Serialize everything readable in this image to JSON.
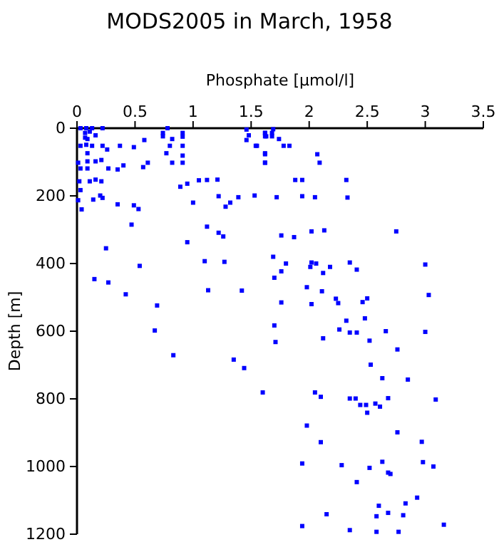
{
  "chart_data": {
    "type": "scatter",
    "title": "MODS2005 in March, 1958",
    "xlabel": "Phosphate [µmol/l]",
    "ylabel": "Depth [m]",
    "xlim": [
      0,
      3.5
    ],
    "xticks": [
      0,
      0.5,
      1,
      1.5,
      2,
      2.5,
      3,
      3.5
    ],
    "ylim": [
      1200,
      0
    ],
    "yticks": [
      0,
      200,
      400,
      600,
      800,
      1000,
      1200
    ],
    "grid": false,
    "marker": "square",
    "series": [
      {
        "color": "#0000ff",
        "x": [
          0.03,
          0.08,
          0.13,
          0.22,
          0.07,
          0.11,
          0.07,
          0.16,
          0.09,
          0.74,
          0.74,
          0.78,
          0.91,
          0.91,
          1.46,
          1.48,
          1.62,
          1.63,
          0.03,
          0.08,
          0.13,
          0.22,
          0.26,
          0.37,
          0.49,
          0.58,
          0.82,
          0.8,
          0.91,
          1.46,
          1.54,
          0.09,
          0.77,
          0.91,
          1.62,
          1.62,
          0.01,
          0.09,
          0.16,
          0.21,
          0.09,
          0.03,
          0.27,
          0.35,
          0.4,
          0.57,
          0.61,
          0.82,
          0.91,
          0.02,
          0.11,
          0.16,
          0.21,
          0.89,
          0.95,
          1.05,
          1.12,
          1.21,
          0.03,
          0.2,
          0.22,
          0.14,
          0.01,
          0.35,
          0.49,
          0.53,
          1.0,
          1.22,
          1.28,
          1.32,
          1.39,
          1.53,
          0.04,
          0.47,
          0.25,
          0.54,
          0.95,
          1.12,
          1.22,
          1.26,
          1.1,
          1.27,
          0.15,
          0.27,
          0.42,
          0.69,
          0.67,
          1.13,
          1.42,
          1.69,
          1.62,
          1.68,
          1.62,
          1.68,
          1.74,
          1.55,
          1.78,
          1.83,
          1.62,
          2.07,
          1.62,
          2.09,
          1.88,
          1.94,
          2.32,
          1.72,
          1.94,
          2.05,
          2.33,
          1.76,
          1.87,
          2.02,
          2.13,
          2.75,
          1.69,
          1.8,
          2.02,
          2.06,
          2.01,
          2.18,
          2.35,
          2.41,
          1.76,
          2.12,
          1.7,
          3.0,
          1.98,
          2.11,
          2.23,
          2.25,
          2.5,
          2.46,
          3.03,
          1.76,
          2.02,
          2.32,
          2.48,
          1.7,
          2.26,
          2.35,
          2.41,
          2.66,
          3.0,
          0.83,
          1.35,
          1.44,
          1.6,
          2.12,
          1.71,
          2.52,
          2.76,
          2.53,
          2.63,
          2.85,
          2.05,
          2.1,
          2.35,
          2.4,
          2.68,
          3.09,
          2.57,
          2.44,
          2.49,
          2.61,
          2.5,
          1.98,
          2.76,
          2.1,
          2.97,
          1.94,
          2.28,
          2.63,
          2.98,
          2.52,
          3.07,
          2.68,
          2.7,
          2.41,
          2.93,
          2.83,
          2.6,
          2.15,
          2.68,
          2.58,
          2.81,
          3.16,
          1.94,
          2.35,
          2.58,
          2.77
        ],
        "values": [
          0,
          0,
          0,
          0,
          14,
          10,
          28,
          21,
          32,
          14,
          24,
          0,
          14,
          25,
          4,
          21,
          14,
          24,
          52,
          49,
          52,
          52,
          63,
          52,
          56,
          35,
          32,
          52,
          52,
          35,
          52,
          74,
          74,
          81,
          74,
          102,
          102,
          98,
          98,
          94,
          119,
          119,
          119,
          122,
          110,
          115,
          102,
          102,
          102,
          157,
          157,
          152,
          157,
          173,
          164,
          154,
          153,
          152,
          183,
          199,
          206,
          211,
          213,
          225,
          228,
          239,
          220,
          201,
          232,
          220,
          204,
          199,
          240,
          285,
          355,
          407,
          337,
          291,
          309,
          320,
          393,
          395,
          446,
          456,
          491,
          524,
          598,
          479,
          480,
          3,
          14,
          14,
          24,
          24,
          32,
          52,
          52,
          52,
          77,
          77,
          102,
          102,
          153,
          153,
          153,
          204,
          201,
          204,
          205,
          317,
          322,
          305,
          302,
          305,
          380,
          400,
          397,
          400,
          410,
          410,
          397,
          418,
          423,
          428,
          442,
          403,
          470,
          482,
          504,
          517,
          503,
          514,
          493,
          515,
          520,
          569,
          562,
          583,
          595,
          604,
          604,
          600,
          602,
          671,
          684,
          709,
          781,
          621,
          632,
          628,
          654,
          699,
          739,
          743,
          781,
          794,
          799,
          799,
          798,
          802,
          814,
          818,
          818,
          823,
          841,
          879,
          899,
          928,
          927,
          991,
          996,
          986,
          987,
          1004,
          1000,
          1018,
          1022,
          1046,
          1092,
          1109,
          1116,
          1141,
          1137,
          1147,
          1144,
          1172,
          1176,
          1188,
          1193,
          1193
        ]
      }
    ]
  }
}
